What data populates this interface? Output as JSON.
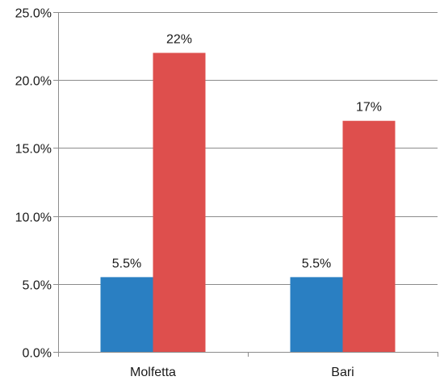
{
  "chart_data": {
    "type": "bar",
    "categories": [
      "Molfetta",
      "Bari"
    ],
    "series": [
      {
        "values": [
          5.5,
          5.5
        ],
        "labels": [
          "5.5%",
          "5.5%"
        ],
        "color": "#2a7fc2"
      },
      {
        "values": [
          22,
          17
        ],
        "labels": [
          "22%",
          "17%"
        ],
        "color": "#de4f4d"
      }
    ],
    "ylim": [
      0,
      25
    ],
    "yticks": [
      0,
      5,
      10,
      15,
      20,
      25
    ],
    "ytick_labels": [
      "0.0%",
      "5.0%",
      "10.0%",
      "15.0%",
      "20.0%",
      "25.0%"
    ],
    "grid": true,
    "legend": false
  }
}
